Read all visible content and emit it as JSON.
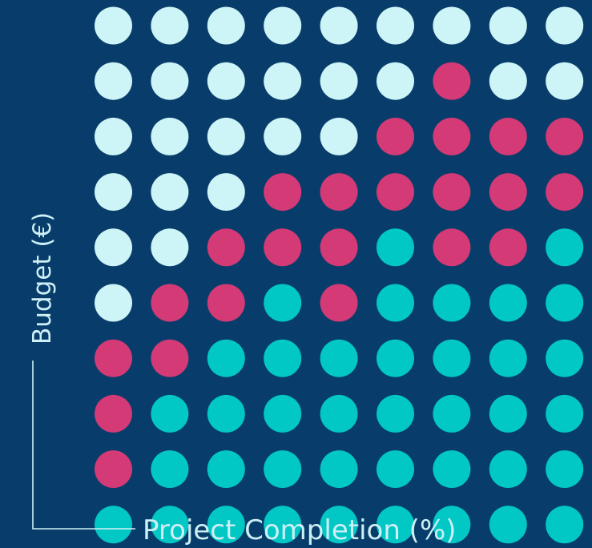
{
  "chart_data": {
    "type": "heatmap",
    "xlabel": "Project Completion (%)",
    "ylabel": "Budget (€)",
    "legend": [],
    "colors": {
      "background": "#083d6b",
      "light": "#cdf4f6",
      "pink": "#d33a76",
      "teal": "#01c8c5"
    },
    "rows": 10,
    "cols": 9,
    "grid": [
      [
        "light",
        "light",
        "light",
        "light",
        "light",
        "light",
        "light",
        "light",
        "light"
      ],
      [
        "light",
        "light",
        "light",
        "light",
        "light",
        "light",
        "pink",
        "light",
        "light"
      ],
      [
        "light",
        "light",
        "light",
        "light",
        "light",
        "pink",
        "pink",
        "pink",
        "pink"
      ],
      [
        "light",
        "light",
        "light",
        "pink",
        "pink",
        "pink",
        "pink",
        "pink",
        "pink"
      ],
      [
        "light",
        "light",
        "pink",
        "pink",
        "pink",
        "teal",
        "pink",
        "pink",
        "teal"
      ],
      [
        "light",
        "pink",
        "pink",
        "teal",
        "pink",
        "teal",
        "teal",
        "teal",
        "teal"
      ],
      [
        "pink",
        "pink",
        "teal",
        "teal",
        "teal",
        "teal",
        "teal",
        "teal",
        "teal"
      ],
      [
        "pink",
        "teal",
        "teal",
        "teal",
        "teal",
        "teal",
        "teal",
        "teal",
        "teal"
      ],
      [
        "pink",
        "teal",
        "teal",
        "teal",
        "teal",
        "teal",
        "teal",
        "teal",
        "teal"
      ],
      [
        "teal",
        "teal",
        "teal",
        "teal",
        "teal",
        "teal",
        "teal",
        "teal",
        "teal"
      ]
    ]
  }
}
